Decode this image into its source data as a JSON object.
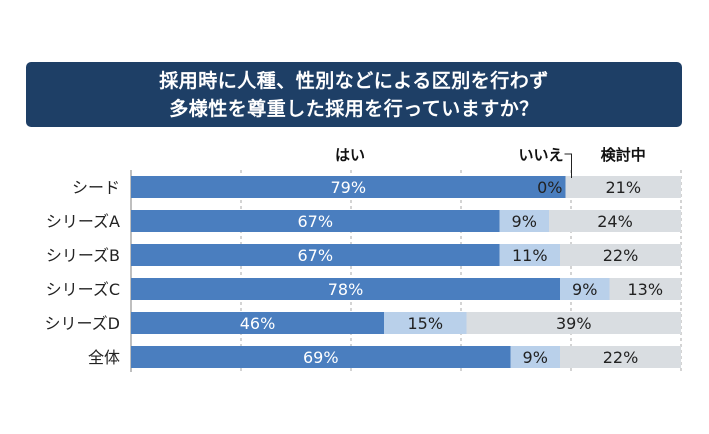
{
  "title": {
    "line1": "採用時に人種、性別などによる区別を行わず",
    "line2": "多様性を尊重した採用を行っていますか？"
  },
  "colors": {
    "title_bg": "#1e3f66",
    "yes": "#4a7ebf",
    "no": "#b9d0ea",
    "considering": "#d9dde1",
    "grid": "#aaaaaa"
  },
  "chart_data": {
    "type": "bar",
    "orientation": "horizontal",
    "stacked": true,
    "percent": true,
    "categories": [
      "シード",
      "シリーズA",
      "シリーズB",
      "シリーズC",
      "シリーズD",
      "全体"
    ],
    "series": [
      {
        "name": "はい",
        "values": [
          79,
          67,
          67,
          78,
          46,
          69
        ]
      },
      {
        "name": "いいえ",
        "values": [
          0,
          9,
          11,
          9,
          15,
          9
        ]
      },
      {
        "name": "検討中",
        "values": [
          21,
          24,
          22,
          13,
          39,
          22
        ]
      }
    ],
    "xlim": [
      0,
      100
    ],
    "grid": true
  }
}
